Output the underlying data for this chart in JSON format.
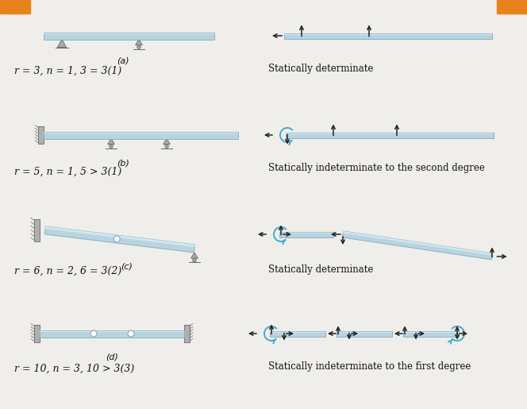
{
  "bg_color": "#f0eeea",
  "beam_color": "#b8d4e0",
  "beam_edge_color": "#8ab0c0",
  "beam_top_color": "#d0e8f0",
  "arrow_color": "#222222",
  "blue_color": "#44aacc",
  "text_color": "#111111",
  "orange_color": "#e8821a",
  "support_color": "#aaaaaa",
  "support_edge": "#666666",
  "rows": [
    {
      "label": "(a)",
      "formula": "r = 3, n = 1, 3 = 3(1)",
      "result": "Statically determinate"
    },
    {
      "label": "(b)",
      "formula": "r = 5, n = 1, 5 > 3(1)",
      "result": "Statically indeterminate to the second degree"
    },
    {
      "label": "(c)",
      "formula": "r = 6, n = 2, 6 = 3(2)",
      "result": "Statically determinate"
    },
    {
      "label": "(d)",
      "formula": "r = 10, n = 3, 10 > 3(3)",
      "result": "Statically indeterminate to the first degree"
    }
  ]
}
